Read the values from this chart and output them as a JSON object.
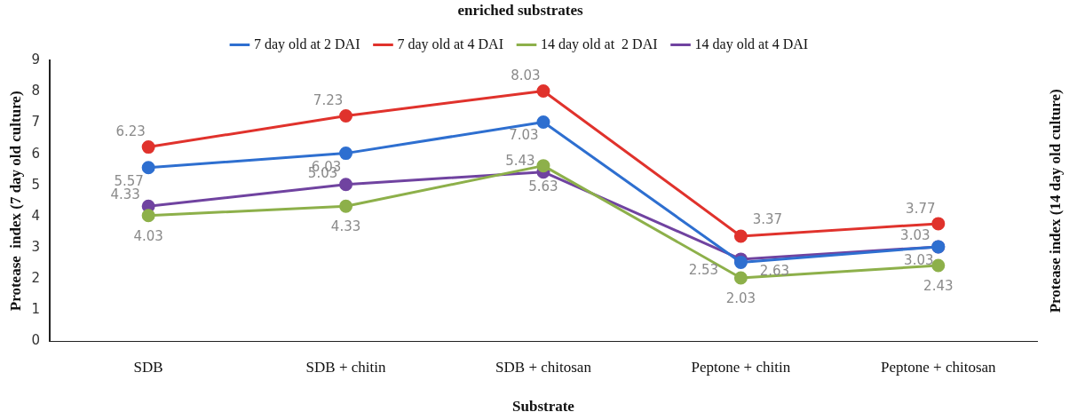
{
  "chart_data": {
    "type": "line",
    "title": "enriched substrates",
    "xlabel": "Substrate",
    "ylabel": "Protease  index (7 day old culture)",
    "y2label": "Protease index (14 day old culture)",
    "categories": [
      "SDB",
      "SDB + chitin",
      "SDB + chitosan",
      "Peptone + chitin",
      "Peptone + chitosan"
    ],
    "series": [
      {
        "name": "7 day old at 2 DAI",
        "color": "#2e6fd0",
        "values": [
          5.57,
          6.03,
          7.03,
          2.53,
          3.03
        ]
      },
      {
        "name": "7 day old at 4 DAI",
        "color": "#e0322c",
        "values": [
          6.23,
          7.23,
          8.03,
          3.37,
          3.77
        ]
      },
      {
        "name": "14 day old at  2 DAI",
        "color": "#8db04a",
        "values": [
          4.03,
          4.33,
          5.63,
          2.03,
          2.43
        ]
      },
      {
        "name": "14 day old at 4 DAI",
        "color": "#7043a0",
        "values": [
          4.33,
          5.03,
          5.43,
          2.63,
          3.03
        ]
      }
    ],
    "ylim": [
      0,
      9
    ],
    "yticks": [
      0,
      1,
      2,
      3,
      4,
      5,
      6,
      7,
      8,
      9
    ],
    "grid": false,
    "legend": "top",
    "marker": "circle",
    "line_style": "solid",
    "data_labels": true
  }
}
